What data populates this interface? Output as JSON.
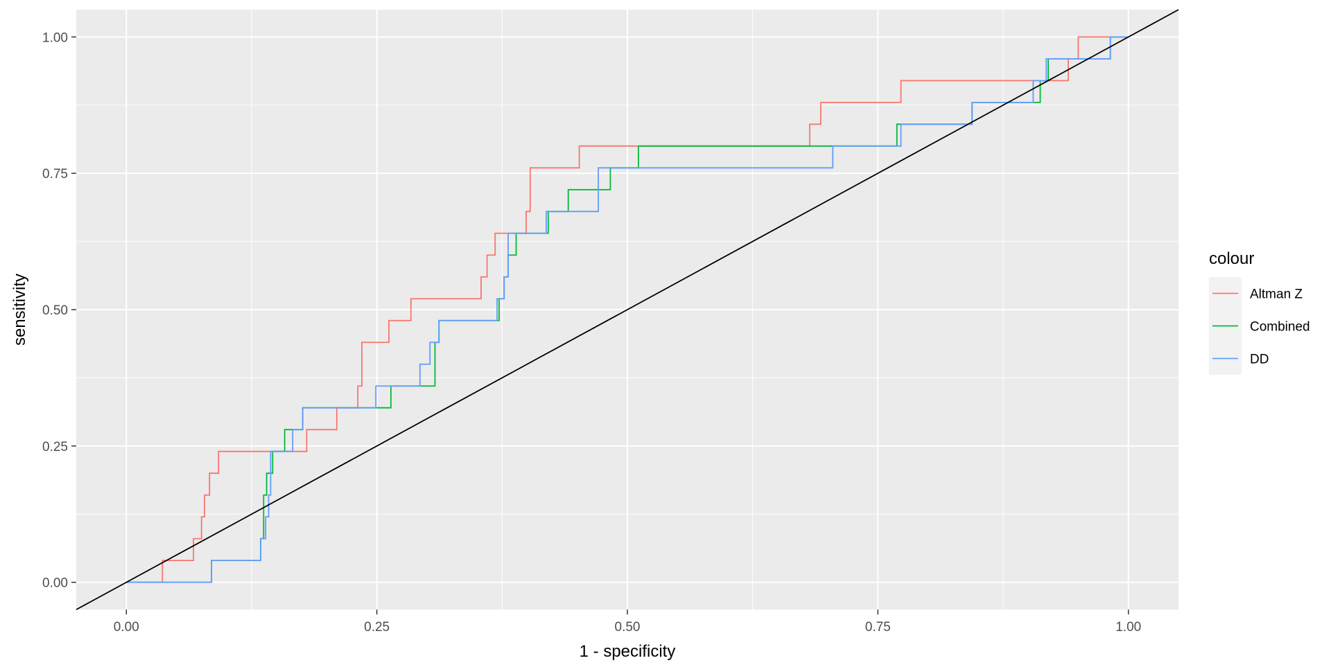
{
  "chart_data": {
    "type": "line",
    "xlabel": "1 - specificity",
    "ylabel": "sensitivity",
    "xlim": [
      -0.05,
      1.05
    ],
    "ylim": [
      -0.05,
      1.05
    ],
    "x_ticks": [
      0,
      0.25,
      0.5,
      0.75,
      1
    ],
    "x_tick_labels": [
      "0.00",
      "0.25",
      "0.50",
      "0.75",
      "1.00"
    ],
    "y_ticks": [
      0,
      0.25,
      0.5,
      0.75,
      1
    ],
    "y_tick_labels": [
      "0.00",
      "0.25",
      "0.50",
      "0.75",
      "1.00"
    ],
    "grid": true,
    "reference_line": {
      "from": [
        0,
        0
      ],
      "to": [
        1,
        1
      ],
      "color": "#000000"
    },
    "legend": {
      "title": "colour",
      "position": "right"
    },
    "series": [
      {
        "name": "Altman Z",
        "color": "#F8766D",
        "points": [
          [
            0,
            0
          ],
          [
            0.036,
            0
          ],
          [
            0.036,
            0.04
          ],
          [
            0.067,
            0.04
          ],
          [
            0.067,
            0.08
          ],
          [
            0.075,
            0.08
          ],
          [
            0.075,
            0.12
          ],
          [
            0.078,
            0.12
          ],
          [
            0.078,
            0.16
          ],
          [
            0.083,
            0.16
          ],
          [
            0.083,
            0.2
          ],
          [
            0.092,
            0.2
          ],
          [
            0.092,
            0.24
          ],
          [
            0.18,
            0.24
          ],
          [
            0.18,
            0.28
          ],
          [
            0.21,
            0.28
          ],
          [
            0.21,
            0.32
          ],
          [
            0.231,
            0.32
          ],
          [
            0.231,
            0.36
          ],
          [
            0.235,
            0.36
          ],
          [
            0.235,
            0.44
          ],
          [
            0.262,
            0.44
          ],
          [
            0.262,
            0.48
          ],
          [
            0.284,
            0.48
          ],
          [
            0.284,
            0.52
          ],
          [
            0.354,
            0.52
          ],
          [
            0.354,
            0.56
          ],
          [
            0.36,
            0.56
          ],
          [
            0.36,
            0.6
          ],
          [
            0.368,
            0.6
          ],
          [
            0.368,
            0.64
          ],
          [
            0.399,
            0.64
          ],
          [
            0.399,
            0.68
          ],
          [
            0.403,
            0.68
          ],
          [
            0.403,
            0.76
          ],
          [
            0.452,
            0.76
          ],
          [
            0.452,
            0.8
          ],
          [
            0.682,
            0.8
          ],
          [
            0.682,
            0.84
          ],
          [
            0.693,
            0.84
          ],
          [
            0.693,
            0.88
          ],
          [
            0.773,
            0.88
          ],
          [
            0.773,
            0.92
          ],
          [
            0.94,
            0.92
          ],
          [
            0.94,
            0.96
          ],
          [
            0.95,
            0.96
          ],
          [
            0.95,
            1.0
          ],
          [
            1.0,
            1.0
          ]
        ]
      },
      {
        "name": "Combined",
        "color": "#00BA38",
        "points": [
          [
            0,
            0
          ],
          [
            0.085,
            0
          ],
          [
            0.085,
            0.04
          ],
          [
            0.134,
            0.04
          ],
          [
            0.134,
            0.08
          ],
          [
            0.137,
            0.08
          ],
          [
            0.137,
            0.16
          ],
          [
            0.14,
            0.16
          ],
          [
            0.14,
            0.2
          ],
          [
            0.146,
            0.2
          ],
          [
            0.146,
            0.24
          ],
          [
            0.158,
            0.24
          ],
          [
            0.158,
            0.28
          ],
          [
            0.176,
            0.28
          ],
          [
            0.176,
            0.32
          ],
          [
            0.264,
            0.32
          ],
          [
            0.264,
            0.36
          ],
          [
            0.308,
            0.36
          ],
          [
            0.308,
            0.44
          ],
          [
            0.312,
            0.44
          ],
          [
            0.312,
            0.48
          ],
          [
            0.372,
            0.48
          ],
          [
            0.372,
            0.52
          ],
          [
            0.377,
            0.52
          ],
          [
            0.377,
            0.56
          ],
          [
            0.381,
            0.56
          ],
          [
            0.381,
            0.6
          ],
          [
            0.389,
            0.6
          ],
          [
            0.389,
            0.64
          ],
          [
            0.421,
            0.64
          ],
          [
            0.421,
            0.68
          ],
          [
            0.441,
            0.68
          ],
          [
            0.441,
            0.72
          ],
          [
            0.483,
            0.72
          ],
          [
            0.483,
            0.76
          ],
          [
            0.511,
            0.76
          ],
          [
            0.511,
            0.8
          ],
          [
            0.769,
            0.8
          ],
          [
            0.769,
            0.84
          ],
          [
            0.844,
            0.84
          ],
          [
            0.844,
            0.88
          ],
          [
            0.912,
            0.88
          ],
          [
            0.912,
            0.92
          ],
          [
            0.92,
            0.92
          ],
          [
            0.92,
            0.96
          ],
          [
            0.982,
            0.96
          ],
          [
            0.982,
            1.0
          ],
          [
            1.0,
            1.0
          ]
        ]
      },
      {
        "name": "DD",
        "color": "#619CFF",
        "points": [
          [
            0,
            0
          ],
          [
            0.085,
            0
          ],
          [
            0.085,
            0.04
          ],
          [
            0.134,
            0.04
          ],
          [
            0.134,
            0.08
          ],
          [
            0.139,
            0.08
          ],
          [
            0.139,
            0.12
          ],
          [
            0.142,
            0.12
          ],
          [
            0.142,
            0.16
          ],
          [
            0.144,
            0.16
          ],
          [
            0.144,
            0.24
          ],
          [
            0.166,
            0.24
          ],
          [
            0.166,
            0.28
          ],
          [
            0.176,
            0.28
          ],
          [
            0.176,
            0.32
          ],
          [
            0.249,
            0.32
          ],
          [
            0.249,
            0.36
          ],
          [
            0.293,
            0.36
          ],
          [
            0.293,
            0.4
          ],
          [
            0.303,
            0.4
          ],
          [
            0.303,
            0.44
          ],
          [
            0.312,
            0.44
          ],
          [
            0.312,
            0.48
          ],
          [
            0.37,
            0.48
          ],
          [
            0.37,
            0.52
          ],
          [
            0.377,
            0.52
          ],
          [
            0.377,
            0.56
          ],
          [
            0.381,
            0.56
          ],
          [
            0.381,
            0.64
          ],
          [
            0.419,
            0.64
          ],
          [
            0.419,
            0.68
          ],
          [
            0.471,
            0.68
          ],
          [
            0.471,
            0.76
          ],
          [
            0.705,
            0.76
          ],
          [
            0.705,
            0.8
          ],
          [
            0.773,
            0.8
          ],
          [
            0.773,
            0.84
          ],
          [
            0.844,
            0.84
          ],
          [
            0.844,
            0.88
          ],
          [
            0.905,
            0.88
          ],
          [
            0.905,
            0.92
          ],
          [
            0.918,
            0.92
          ],
          [
            0.918,
            0.96
          ],
          [
            0.982,
            0.96
          ],
          [
            0.982,
            1.0
          ],
          [
            1.0,
            1.0
          ]
        ]
      }
    ]
  }
}
